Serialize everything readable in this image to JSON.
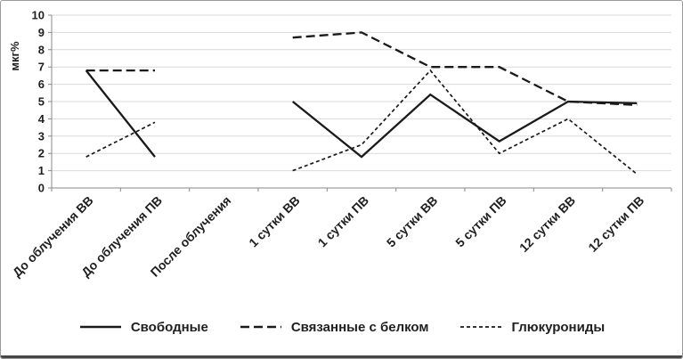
{
  "chart_data": {
    "type": "line",
    "title": "",
    "ylabel": "мкг%",
    "ylim": [
      0,
      10
    ],
    "yticks": [
      0,
      1,
      2,
      3,
      4,
      5,
      6,
      7,
      8,
      9,
      10
    ],
    "categories": [
      "До облучения ВВ",
      "До облучения ПВ",
      "После облучения",
      "1 сутки ВВ",
      "1 сутки ПВ",
      "5 сутки ВВ",
      "5 сутки ПВ",
      "12 сутки ВВ",
      "12 сутки ПВ"
    ],
    "series": [
      {
        "name": "Свободные",
        "line_style": "solid",
        "values": [
          6.8,
          1.8,
          null,
          5,
          1.8,
          5.4,
          2.7,
          5,
          4.9
        ]
      },
      {
        "name": "Связанные с белком",
        "line_style": "dashed",
        "values": [
          6.8,
          6.8,
          null,
          8.7,
          9,
          7,
          7,
          5,
          4.8
        ]
      },
      {
        "name": "Глюкурониды",
        "line_style": "fine-dashed",
        "values": [
          1.8,
          3.8,
          null,
          1,
          2.5,
          6.8,
          2,
          4,
          0.8
        ]
      }
    ],
    "legend_position": "bottom",
    "grid": true
  },
  "colors": {
    "line": "#1a1a1a",
    "grid": "#d9d9d9",
    "axis": "#898989",
    "text": "#1f1f1f",
    "background": "#ffffff",
    "frame_border": "#9a9a9a"
  }
}
